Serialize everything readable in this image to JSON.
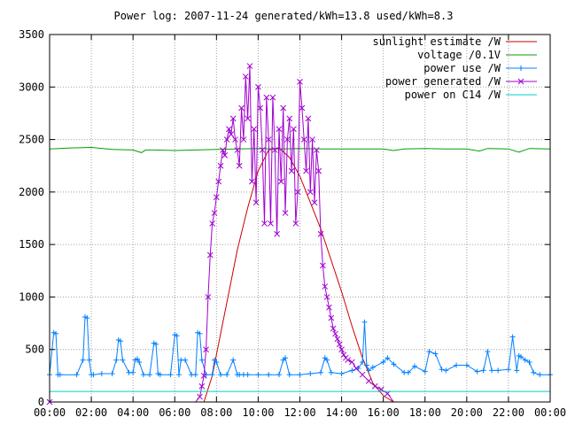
{
  "chart_data": {
    "type": "line",
    "title": "Power log: 2007-11-24 generated/kWh=13.8 used/kWh=8.3",
    "xlabel": "",
    "ylabel": "",
    "x_unit": "hour of day",
    "xlim": [
      0,
      24
    ],
    "ylim": [
      0,
      3500
    ],
    "x_tick_values": [
      0,
      2,
      4,
      6,
      8,
      10,
      12,
      14,
      16,
      18,
      20,
      22,
      24
    ],
    "x_tick_labels": [
      "00:00",
      "02:00",
      "04:00",
      "06:00",
      "08:00",
      "10:00",
      "12:00",
      "14:00",
      "16:00",
      "18:00",
      "20:00",
      "22:00",
      "00:00"
    ],
    "y_ticks": [
      0,
      500,
      1000,
      1500,
      2000,
      2500,
      3000,
      3500
    ],
    "grid": true,
    "legend_position": "top-right",
    "series": [
      {
        "name": "sunlight estimate /W",
        "color": "#cc0000",
        "style": "line",
        "x": [
          0,
          7.4,
          7.8,
          8.2,
          8.6,
          9.0,
          9.5,
          10.0,
          10.5,
          11.0,
          11.5,
          12.0,
          12.5,
          13.0,
          13.5,
          14.0,
          14.5,
          15.0,
          15.5,
          16.0,
          16.5,
          24
        ],
        "y": [
          0,
          0,
          250,
          650,
          1050,
          1450,
          1850,
          2200,
          2400,
          2420,
          2330,
          2150,
          1900,
          1650,
          1350,
          1050,
          720,
          420,
          180,
          60,
          0,
          0
        ]
      },
      {
        "name": "voltage /0.1V",
        "color": "#00a000",
        "style": "line",
        "x": [
          0,
          1,
          2,
          3,
          4,
          4.4,
          4.6,
          5,
          6,
          7,
          8,
          9,
          10,
          11,
          12,
          13,
          14,
          15,
          16,
          16.5,
          17,
          18,
          19,
          20,
          20.6,
          21,
          22,
          22.5,
          23,
          24
        ],
        "y": [
          2410,
          2420,
          2425,
          2405,
          2400,
          2375,
          2400,
          2400,
          2395,
          2400,
          2405,
          2410,
          2415,
          2410,
          2415,
          2410,
          2410,
          2410,
          2410,
          2395,
          2410,
          2415,
          2410,
          2410,
          2390,
          2415,
          2410,
          2380,
          2415,
          2410
        ]
      },
      {
        "name": "power use /W",
        "color": "#0080ff",
        "style": "linespoints-plus",
        "x": [
          0,
          0.2,
          0.3,
          0.4,
          0.5,
          1.3,
          1.6,
          1.7,
          1.8,
          1.9,
          2.0,
          2.1,
          2.5,
          3.0,
          3.2,
          3.3,
          3.4,
          3.5,
          3.8,
          4.0,
          4.1,
          4.2,
          4.3,
          4.5,
          4.8,
          5.0,
          5.1,
          5.2,
          5.3,
          5.8,
          6.0,
          6.1,
          6.2,
          6.3,
          6.5,
          6.8,
          7.0,
          7.1,
          7.2,
          7.3,
          7.5,
          7.8,
          7.9,
          8.0,
          8.2,
          8.5,
          8.8,
          9.0,
          9.1,
          9.3,
          9.5,
          10.0,
          10.5,
          11.0,
          11.2,
          11.3,
          11.5,
          12.0,
          12.5,
          13.0,
          13.2,
          13.3,
          13.5,
          14.0,
          14.5,
          14.8,
          15.0,
          15.1,
          15.2,
          15.3,
          15.5,
          16.0,
          16.2,
          16.5,
          17.0,
          17.2,
          17.5,
          18.0,
          18.2,
          18.5,
          18.8,
          19.0,
          19.5,
          20.0,
          20.5,
          20.8,
          21.0,
          21.2,
          21.5,
          22.0,
          22.2,
          22.4,
          22.5,
          22.6,
          22.8,
          23.0,
          23.2,
          23.5,
          24.0
        ],
        "y": [
          260,
          660,
          650,
          260,
          260,
          260,
          400,
          810,
          800,
          400,
          260,
          260,
          270,
          270,
          400,
          590,
          580,
          400,
          280,
          280,
          400,
          410,
          380,
          260,
          260,
          560,
          550,
          270,
          260,
          260,
          640,
          630,
          260,
          400,
          400,
          260,
          260,
          660,
          650,
          400,
          260,
          260,
          400,
          380,
          260,
          260,
          400,
          260,
          260,
          260,
          260,
          260,
          260,
          260,
          400,
          420,
          260,
          260,
          270,
          280,
          420,
          400,
          280,
          270,
          300,
          320,
          380,
          760,
          350,
          300,
          330,
          380,
          420,
          360,
          280,
          280,
          340,
          290,
          480,
          460,
          310,
          300,
          350,
          350,
          290,
          300,
          480,
          300,
          300,
          310,
          620,
          300,
          440,
          430,
          400,
          380,
          280,
          260,
          260
        ]
      },
      {
        "name": "power generated /W",
        "color": "#a000d0",
        "style": "linespoints-x",
        "x": [
          0,
          7.0,
          7.2,
          7.3,
          7.4,
          7.5,
          7.6,
          7.7,
          7.8,
          7.9,
          8.0,
          8.1,
          8.2,
          8.3,
          8.4,
          8.5,
          8.6,
          8.7,
          8.8,
          8.9,
          9.0,
          9.1,
          9.2,
          9.3,
          9.4,
          9.5,
          9.6,
          9.7,
          9.8,
          9.9,
          10.0,
          10.1,
          10.2,
          10.3,
          10.4,
          10.5,
          10.6,
          10.7,
          10.8,
          10.9,
          11.0,
          11.1,
          11.2,
          11.3,
          11.4,
          11.5,
          11.6,
          11.7,
          11.8,
          11.9,
          12.0,
          12.1,
          12.2,
          12.3,
          12.4,
          12.5,
          12.6,
          12.7,
          12.8,
          12.9,
          13.0,
          13.1,
          13.2,
          13.3,
          13.4,
          13.5,
          13.6,
          13.7,
          13.8,
          13.9,
          14.0,
          14.1,
          14.2,
          14.3,
          14.5,
          14.7,
          15.0,
          15.3,
          15.6,
          15.9,
          16.2,
          16.5,
          16.6,
          16.8,
          17.0,
          24.0
        ],
        "y": [
          0,
          0,
          50,
          150,
          250,
          500,
          1000,
          1400,
          1700,
          1800,
          1950,
          2100,
          2250,
          2400,
          2350,
          2500,
          2600,
          2550,
          2700,
          2500,
          2400,
          2250,
          2800,
          2500,
          3100,
          2700,
          3200,
          2100,
          2600,
          1900,
          3000,
          2800,
          2400,
          1700,
          2900,
          2500,
          1700,
          2900,
          2400,
          1600,
          2600,
          2100,
          2800,
          1800,
          2500,
          2700,
          2200,
          2600,
          1700,
          2000,
          3050,
          2800,
          2500,
          2200,
          2700,
          2000,
          2500,
          1900,
          2400,
          2200,
          1600,
          1300,
          1100,
          1000,
          900,
          800,
          700,
          650,
          600,
          550,
          500,
          450,
          420,
          400,
          380,
          320,
          260,
          200,
          150,
          120,
          80,
          0,
          0,
          0,
          0,
          0
        ]
      },
      {
        "name": "power on C14 /W",
        "color": "#00d0c0",
        "style": "line",
        "x": [
          0,
          24
        ],
        "y": [
          100,
          100
        ]
      }
    ]
  }
}
